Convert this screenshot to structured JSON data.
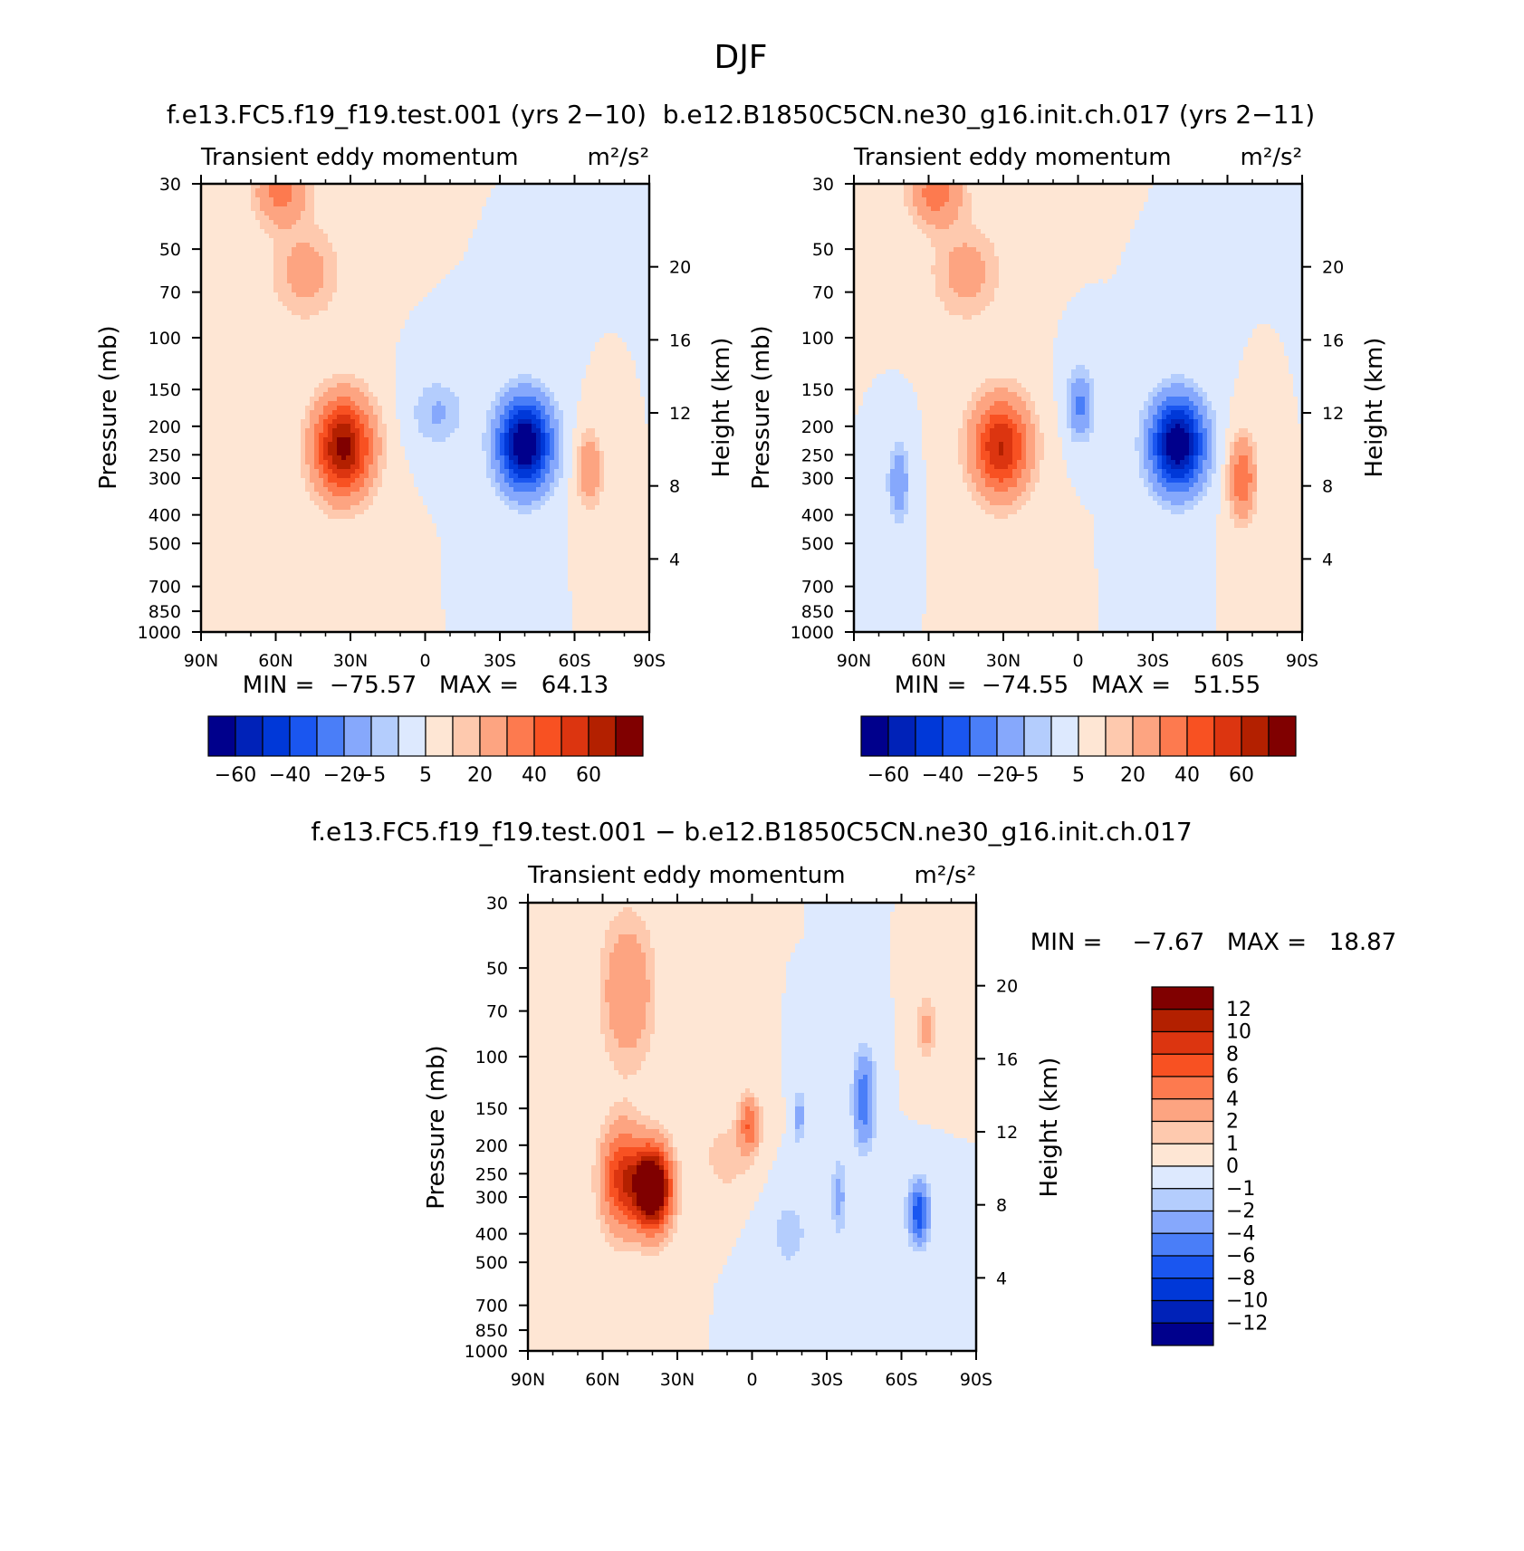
{
  "title": "DJF",
  "top_subtitle": "f.e13.FC5.f19_f19.test.001 (yrs 2−10)  b.e12.B1850C5CN.ne30_g16.init.ch.017 (yrs 2−11)",
  "bottom_subtitle": "f.e13.FC5.f19_f19.test.001 − b.e12.B1850C5CN.ne30_g16.init.ch.017",
  "palette": {
    "abs": [
      "#00008c",
      "#0022b8",
      "#0038d8",
      "#1a56f0",
      "#4a7ef8",
      "#86a8fc",
      "#b4cdfd",
      "#dde9fe",
      "#fee6d4",
      "#fec9ae",
      "#fda481",
      "#fd7a4f",
      "#f85122",
      "#dc3510",
      "#b32000",
      "#800000"
    ],
    "diff": [
      "#00008c",
      "#0022b8",
      "#0038d8",
      "#1a56f0",
      "#4a7ef8",
      "#86a8fc",
      "#b4cdfd",
      "#dde9fe",
      "#fee6d4",
      "#fec9ae",
      "#fda481",
      "#fd7a4f",
      "#f85122",
      "#dc3510",
      "#b32000",
      "#800000"
    ]
  },
  "chart_data": [
    {
      "id": "left",
      "type": "contour",
      "title": "Transient eddy momentum",
      "units": "m²/s²",
      "xlabel": "",
      "ylabel": "Pressure (mb)",
      "ylabel_right": "Height (km)",
      "x_ticks": [
        "90N",
        "60N",
        "30N",
        "0",
        "30S",
        "60S",
        "90S"
      ],
      "x_values": [
        90,
        60,
        30,
        0,
        -30,
        -60,
        -90
      ],
      "y_ticks": [
        "30",
        "50",
        "70",
        "100",
        "150",
        "200",
        "250",
        "300",
        "400",
        "500",
        "700",
        "850",
        "1000"
      ],
      "y_values": [
        30,
        50,
        70,
        100,
        150,
        200,
        250,
        300,
        400,
        500,
        700,
        850,
        1000
      ],
      "height_ticks": [
        "4",
        "8",
        "12",
        "16",
        "20"
      ],
      "height_values": [
        4,
        8,
        12,
        16,
        20
      ],
      "min_text": "MIN =  −75.57   MAX =   64.13",
      "min": -75.57,
      "max": 64.13,
      "contour_levels": [
        -60,
        -50,
        -40,
        -30,
        -20,
        -10,
        -5,
        0,
        5,
        10,
        20,
        30,
        40,
        50,
        60
      ],
      "colorbar_labels": [
        "−60",
        "−40",
        "−20",
        "−5",
        "5",
        "20",
        "40",
        "60"
      ],
      "features": [
        {
          "lat": 33,
          "p": 235,
          "amp": 64,
          "w": 11,
          "d": 0.36
        },
        {
          "lat": -40,
          "p": 230,
          "amp": -75,
          "w": 10,
          "d": 0.33
        },
        {
          "lat": -66,
          "p": 280,
          "amp": 18,
          "w": 5,
          "d": 0.28
        },
        {
          "lat": 58,
          "p": 32,
          "amp": 24,
          "w": 10,
          "d": 0.25
        },
        {
          "lat": 48,
          "p": 60,
          "amp": 14,
          "w": 13,
          "d": 0.35
        },
        {
          "lat": -5,
          "p": 180,
          "amp": -11,
          "w": 10,
          "d": 0.25
        }
      ]
    },
    {
      "id": "right",
      "type": "contour",
      "title": "Transient eddy momentum",
      "units": "m²/s²",
      "xlabel": "",
      "ylabel": "Pressure (mb)",
      "ylabel_right": "Height (km)",
      "x_ticks": [
        "90N",
        "60N",
        "30N",
        "0",
        "30S",
        "60S",
        "90S"
      ],
      "x_values": [
        90,
        60,
        30,
        0,
        -30,
        -60,
        -90
      ],
      "y_ticks": [
        "30",
        "50",
        "70",
        "100",
        "150",
        "200",
        "250",
        "300",
        "400",
        "500",
        "700",
        "850",
        "1000"
      ],
      "y_values": [
        30,
        50,
        70,
        100,
        150,
        200,
        250,
        300,
        400,
        500,
        700,
        850,
        1000
      ],
      "height_ticks": [
        "4",
        "8",
        "12",
        "16",
        "20"
      ],
      "height_values": [
        4,
        8,
        12,
        16,
        20
      ],
      "min_text": "MIN =  −74.55   MAX =   51.55",
      "min": -74.55,
      "max": 51.55,
      "contour_levels": [
        -60,
        -50,
        -40,
        -30,
        -20,
        -10,
        -5,
        0,
        5,
        10,
        20,
        30,
        40,
        50,
        60
      ],
      "colorbar_labels": [
        "−60",
        "−40",
        "−20",
        "−5",
        "5",
        "20",
        "40",
        "60"
      ],
      "features": [
        {
          "lat": 31,
          "p": 235,
          "amp": 51,
          "w": 11,
          "d": 0.36
        },
        {
          "lat": -40,
          "p": 230,
          "amp": -74,
          "w": 10,
          "d": 0.33
        },
        {
          "lat": -66,
          "p": 300,
          "amp": 30,
          "w": 5,
          "d": 0.3
        },
        {
          "lat": 57,
          "p": 32,
          "amp": 26,
          "w": 10,
          "d": 0.25
        },
        {
          "lat": 45,
          "p": 60,
          "amp": 14,
          "w": 13,
          "d": 0.35
        },
        {
          "lat": 72,
          "p": 310,
          "amp": -18,
          "w": 4,
          "d": 0.28
        },
        {
          "lat": -1,
          "p": 170,
          "amp": -22,
          "w": 5,
          "d": 0.25
        }
      ]
    },
    {
      "id": "diff",
      "type": "contour",
      "title": "Transient eddy momentum",
      "units": "m²/s²",
      "xlabel": "",
      "ylabel": "Pressure (mb)",
      "ylabel_right": "Height (km)",
      "x_ticks": [
        "90N",
        "60N",
        "30N",
        "0",
        "30S",
        "60S",
        "90S"
      ],
      "x_values": [
        90,
        60,
        30,
        0,
        -30,
        -60,
        -90
      ],
      "y_ticks": [
        "30",
        "50",
        "70",
        "100",
        "150",
        "200",
        "250",
        "300",
        "400",
        "500",
        "700",
        "850",
        "1000"
      ],
      "y_values": [
        30,
        50,
        70,
        100,
        150,
        200,
        250,
        300,
        400,
        500,
        700,
        850,
        1000
      ],
      "height_ticks": [
        "4",
        "8",
        "12",
        "16",
        "20"
      ],
      "height_values": [
        4,
        8,
        12,
        16,
        20
      ],
      "min_text": "MIN =    −7.67   MAX =   18.87",
      "min": -7.67,
      "max": 18.87,
      "contour_levels": [
        -12,
        -10,
        -8,
        -6,
        -4,
        -2,
        -1,
        0,
        1,
        2,
        4,
        6,
        8,
        10,
        12
      ],
      "colorbar_labels": [
        "12",
        "10",
        "8",
        "6",
        "4",
        "2",
        "1",
        "0",
        "−1",
        "−2",
        "−4",
        "−6",
        "−8",
        "−10",
        "−12"
      ],
      "features": [
        {
          "lat": 40,
          "p": 280,
          "amp": 18.87,
          "w": 7,
          "d": 0.3
        },
        {
          "lat": 52,
          "p": 260,
          "amp": 9,
          "w": 8,
          "d": 0.38
        },
        {
          "lat": 50,
          "p": 60,
          "amp": 4,
          "w": 10,
          "d": 0.55
        },
        {
          "lat": 1,
          "p": 170,
          "amp": 6,
          "w": 4,
          "d": 0.2
        },
        {
          "lat": -19,
          "p": 160,
          "amp": -3,
          "w": 2,
          "d": 0.2
        },
        {
          "lat": -45,
          "p": 140,
          "amp": -5.5,
          "w": 4,
          "d": 0.35
        },
        {
          "lat": -67,
          "p": 340,
          "amp": -7.67,
          "w": 4,
          "d": 0.22
        },
        {
          "lat": -35,
          "p": 300,
          "amp": -2.5,
          "w": 3,
          "d": 0.3
        },
        {
          "lat": -15,
          "p": 400,
          "amp": -1.5,
          "w": 8,
          "d": 0.3
        },
        {
          "lat": -70,
          "p": 80,
          "amp": 2.5,
          "w": 4,
          "d": 0.25
        },
        {
          "lat": 10,
          "p": 220,
          "amp": 1.8,
          "w": 9,
          "d": 0.25
        }
      ]
    }
  ]
}
